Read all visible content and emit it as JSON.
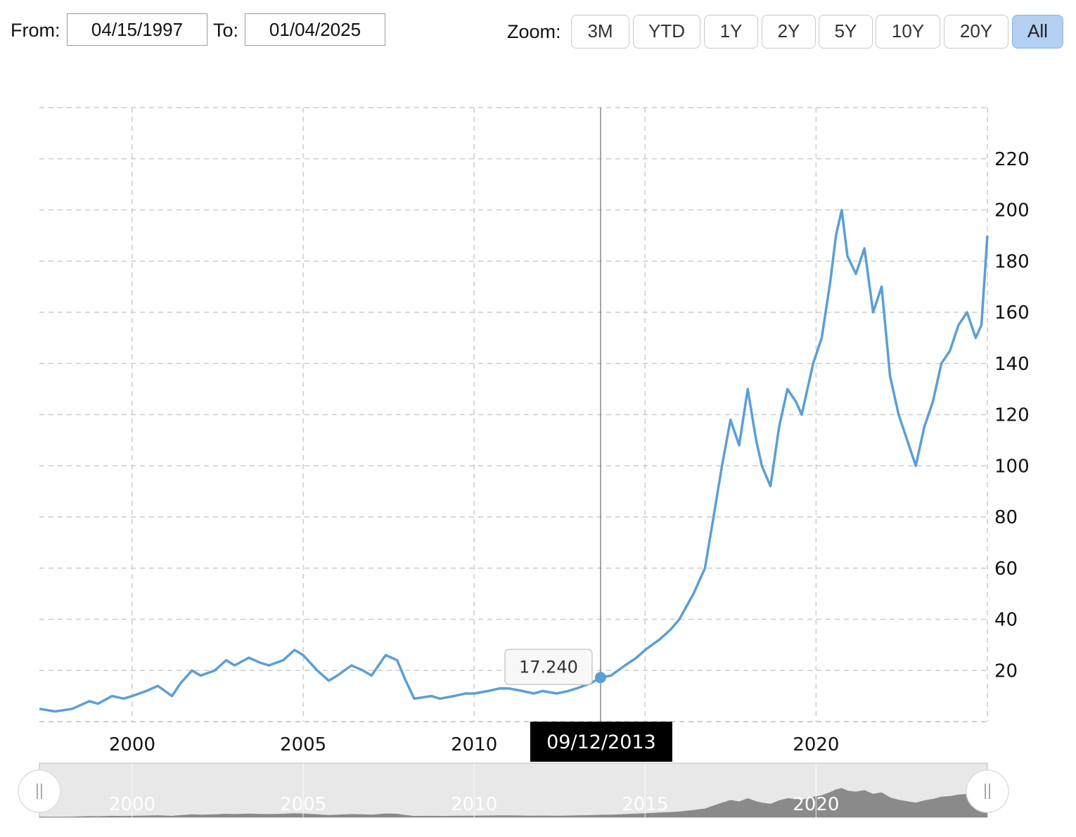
{
  "range_selector": {
    "from_label": "From:",
    "from_value": "04/15/1997",
    "to_label": "To:",
    "to_value": "01/04/2025"
  },
  "zoom": {
    "label": "Zoom:",
    "buttons": [
      "3M",
      "YTD",
      "1Y",
      "2Y",
      "5Y",
      "10Y",
      "20Y",
      "All"
    ],
    "active": "All"
  },
  "tooltip": {
    "value": "17.240",
    "date": "09/12/2013"
  },
  "colors": {
    "line": "#5a9fd4",
    "navigator_fill": "#8a8a8a",
    "active_zoom": "#b3cff2"
  },
  "navigator": {
    "left_handle_icon": "grip-icon",
    "right_handle_icon": "grip-icon"
  },
  "chart_data": {
    "type": "line",
    "title": "",
    "xlabel": "",
    "ylabel": "",
    "x_range": [
      "04/15/1997",
      "01/04/2025"
    ],
    "ylim": [
      0,
      240
    ],
    "x_ticks": [
      "2000",
      "2005",
      "2010",
      "2015",
      "2020"
    ],
    "y_ticks": [
      20,
      40,
      60,
      80,
      100,
      120,
      140,
      160,
      180,
      200,
      220
    ],
    "grid": true,
    "y_axis_position": "right",
    "series": [
      {
        "x": [
          "1997-04-15",
          "1997-10-01",
          "1998-04-01",
          "1998-10-01",
          "1999-01-01",
          "1999-06-01",
          "1999-10-01",
          "2000-01-01",
          "2000-06-01",
          "2000-10-01",
          "2001-03-01",
          "2001-06-01",
          "2001-10-01",
          "2002-01-01",
          "2002-06-01",
          "2002-10-01",
          "2003-01-01",
          "2003-06-01",
          "2003-10-01",
          "2004-01-01",
          "2004-06-01",
          "2004-10-01",
          "2005-01-01",
          "2005-06-01",
          "2005-10-01",
          "2006-01-01",
          "2006-06-01",
          "2006-10-01",
          "2007-01-01",
          "2007-06-01",
          "2007-10-01",
          "2008-01-01",
          "2008-04-01",
          "2008-10-01",
          "2009-01-01",
          "2009-06-01",
          "2009-10-01",
          "2010-01-01",
          "2010-06-01",
          "2010-10-01",
          "2011-01-01",
          "2011-06-01",
          "2011-10-01",
          "2012-01-01",
          "2012-06-01",
          "2012-10-01",
          "2013-01-01",
          "2013-06-01",
          "2013-09-12",
          "2014-01-01",
          "2014-06-01",
          "2014-10-01",
          "2015-01-01",
          "2015-06-01",
          "2015-10-01",
          "2016-01-01",
          "2016-06-01",
          "2016-10-01",
          "2017-01-01",
          "2017-04-01",
          "2017-07-01",
          "2017-10-01",
          "2018-01-01",
          "2018-04-01",
          "2018-06-01",
          "2018-09-01",
          "2018-12-01",
          "2019-03-01",
          "2019-06-01",
          "2019-08-01",
          "2019-10-01",
          "2019-12-01",
          "2020-03-01",
          "2020-06-01",
          "2020-08-01",
          "2020-10-01",
          "2020-12-01",
          "2021-03-01",
          "2021-06-01",
          "2021-09-01",
          "2021-12-01",
          "2022-03-01",
          "2022-06-01",
          "2022-09-01",
          "2022-12-01",
          "2023-03-01",
          "2023-06-01",
          "2023-09-01",
          "2023-12-01",
          "2024-03-01",
          "2024-06-01",
          "2024-09-01",
          "2024-11-01",
          "2025-01-04"
        ],
        "y": [
          5,
          4,
          5,
          8,
          7,
          10,
          9,
          10,
          12,
          14,
          10,
          15,
          20,
          18,
          20,
          24,
          22,
          25,
          23,
          22,
          24,
          28,
          26,
          20,
          16,
          18,
          22,
          20,
          18,
          26,
          24,
          16,
          9,
          10,
          9,
          10,
          11,
          11,
          12,
          13,
          13,
          12,
          11,
          12,
          11,
          12,
          13,
          15,
          17.24,
          18,
          22,
          25,
          28,
          32,
          36,
          40,
          50,
          60,
          80,
          100,
          118,
          108,
          130,
          110,
          100,
          92,
          115,
          130,
          125,
          120,
          130,
          140,
          150,
          172,
          190,
          200,
          182,
          175,
          185,
          160,
          170,
          135,
          120,
          110,
          100,
          115,
          125,
          140,
          145,
          155,
          160,
          150,
          155,
          190
        ]
      }
    ]
  }
}
